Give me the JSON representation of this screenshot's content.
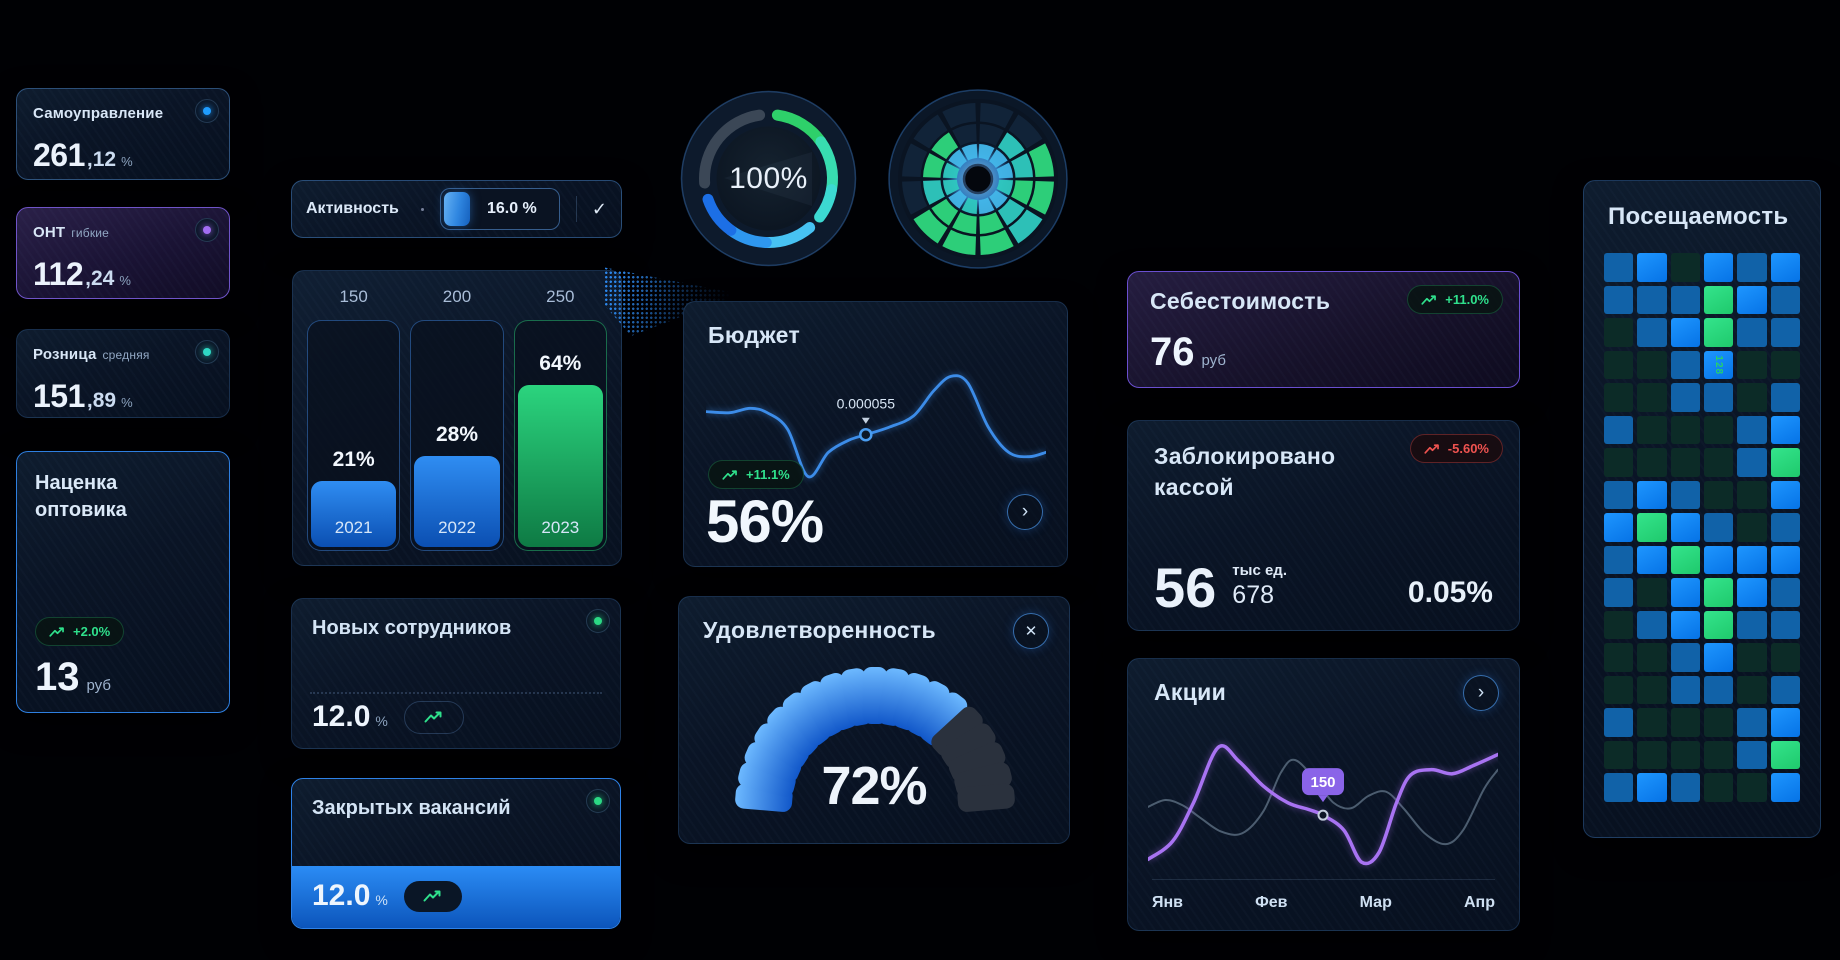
{
  "icons": {
    "check": "✓",
    "chevron": "›",
    "close": "✕"
  },
  "kpi": {
    "selfgov": {
      "title": "Самоуправление",
      "value": "261",
      "fraction": ",12",
      "unit": "%",
      "dot_color": "#1f9dff"
    },
    "ont": {
      "title": "ОНТ",
      "subtitle": "гибкие",
      "value": "112",
      "fraction": ",24",
      "unit": "%",
      "dot_color": "#a26df2"
    },
    "retail": {
      "title": "Розница",
      "subtitle": "средняя",
      "value": "151",
      "fraction": ",89",
      "unit": "%",
      "dot_color": "#2fd9c4"
    },
    "markup": {
      "title": "Наценка оптовика",
      "badge": "+2.0%",
      "value": "13",
      "unit": "руб"
    }
  },
  "activity": {
    "label": "Активность",
    "value": "16.0 %"
  },
  "employees": {
    "title": "Новых сотрудников",
    "value": "12.0",
    "unit": "%"
  },
  "vacancies": {
    "title": "Закрытых вакансий",
    "value": "12.0",
    "unit": "%"
  },
  "ring_gauge": {
    "label": "100%"
  },
  "budget": {
    "title": "Бюджет",
    "badge": "+11.1%",
    "value": "56%",
    "tooltip": "0.000055"
  },
  "satisfaction": {
    "title": "Удовлетворенность",
    "value": "72%"
  },
  "cost": {
    "title": "Себестоимость",
    "badge": "+11.0%",
    "value": "76",
    "unit": "руб"
  },
  "blocked": {
    "title": "Заблокировано кассой",
    "badge": "-5.60%",
    "value": "56",
    "unit_label": "тыс ед.",
    "sub_value": "678",
    "rate": "0.05%"
  },
  "stocks": {
    "title": "Акции",
    "tooltip": "150"
  },
  "attendance": {
    "title": "Посещаемость",
    "annotation": "128"
  },
  "chart_data": [
    {
      "id": "year-bars",
      "type": "bar",
      "categories": [
        "2021",
        "2022",
        "2023"
      ],
      "values": [
        21,
        28,
        64
      ],
      "column_caps": [
        "150",
        "200",
        "250"
      ],
      "fill_ratio": [
        0.3,
        0.41,
        0.72
      ],
      "bar_colors": [
        "blue",
        "blue",
        "green"
      ],
      "title": "",
      "xlabel": "",
      "ylabel": ""
    },
    {
      "id": "progress-ring",
      "type": "gauge",
      "value": 100,
      "label": "100%",
      "arc_segments": [
        {
          "from": 8,
          "to": 55,
          "color": "#2ed06a"
        },
        {
          "from": 55,
          "to": 100,
          "color": "#38dcb0"
        },
        {
          "from": 100,
          "to": 127,
          "color": "#3cd9d2"
        },
        {
          "from": 140,
          "to": 182,
          "color": "#47c2f2"
        },
        {
          "from": 182,
          "to": 216,
          "color": "#2e97ef"
        },
        {
          "from": 216,
          "to": 251,
          "color": "#1c6fe6"
        },
        {
          "from": 266,
          "to": 352,
          "color": "#3b4756"
        }
      ]
    },
    {
      "id": "polar-wheel",
      "type": "heatmap-polar",
      "palette": {
        "d": "#13263c",
        "t": "#2fc9c0",
        "c": "#43b7ea",
        "g": "#2fd87e"
      },
      "sectors": [
        [
          "c",
          "d",
          "d"
        ],
        [
          "c",
          "t",
          "d"
        ],
        [
          "c",
          "t",
          "g"
        ],
        [
          "t",
          "g",
          "g"
        ],
        [
          "c",
          "t",
          "t"
        ],
        [
          "c",
          "g",
          "g"
        ],
        [
          "t",
          "g",
          "g"
        ],
        [
          "c",
          "g",
          "g"
        ],
        [
          "t",
          "t",
          "d"
        ],
        [
          "t",
          "g",
          "d"
        ],
        [
          "c",
          "g",
          "d"
        ],
        [
          "c",
          "d",
          "d"
        ]
      ]
    },
    {
      "id": "budget-line",
      "type": "line",
      "color": "#3c8ce8",
      "points": [
        [
          0,
          0.36
        ],
        [
          0.07,
          0.37
        ],
        [
          0.13,
          0.33
        ],
        [
          0.18,
          0.37
        ],
        [
          0.24,
          0.52
        ],
        [
          0.3,
          0.95
        ],
        [
          0.36,
          0.73
        ],
        [
          0.42,
          0.62
        ],
        [
          0.47,
          0.57
        ],
        [
          0.54,
          0.5
        ],
        [
          0.61,
          0.4
        ],
        [
          0.67,
          0.17
        ],
        [
          0.72,
          0.04
        ],
        [
          0.77,
          0.1
        ],
        [
          0.83,
          0.5
        ],
        [
          0.89,
          0.73
        ],
        [
          0.95,
          0.77
        ],
        [
          1,
          0.73
        ]
      ],
      "marker": {
        "x": 0.47,
        "y": 0.57,
        "label": "0.000055"
      }
    },
    {
      "id": "satisfaction-gauge",
      "type": "gauge-segments",
      "value": 72,
      "segments": 19,
      "filled": 14
    },
    {
      "id": "stocks-lines",
      "type": "line",
      "x_labels": [
        "Янв",
        "Фев",
        "Мар",
        "Апр"
      ],
      "series": [
        {
          "name": "baseline",
          "color": "#5d6f82",
          "width": 2,
          "points": [
            [
              0,
              0.55
            ],
            [
              0.05,
              0.5
            ],
            [
              0.1,
              0.54
            ],
            [
              0.15,
              0.63
            ],
            [
              0.21,
              0.73
            ],
            [
              0.27,
              0.74
            ],
            [
              0.33,
              0.58
            ],
            [
              0.38,
              0.3
            ],
            [
              0.42,
              0.21
            ],
            [
              0.48,
              0.36
            ],
            [
              0.53,
              0.52
            ],
            [
              0.58,
              0.56
            ],
            [
              0.63,
              0.47
            ],
            [
              0.68,
              0.44
            ],
            [
              0.73,
              0.56
            ],
            [
              0.79,
              0.74
            ],
            [
              0.85,
              0.82
            ],
            [
              0.9,
              0.72
            ],
            [
              0.96,
              0.42
            ],
            [
              1,
              0.28
            ]
          ]
        },
        {
          "name": "accent",
          "color": "#a873f2",
          "width": 3.5,
          "points": [
            [
              0,
              0.93
            ],
            [
              0.07,
              0.8
            ],
            [
              0.13,
              0.52
            ],
            [
              0.2,
              0.12
            ],
            [
              0.26,
              0.22
            ],
            [
              0.33,
              0.4
            ],
            [
              0.4,
              0.52
            ],
            [
              0.46,
              0.57
            ],
            [
              0.5,
              0.61
            ],
            [
              0.56,
              0.72
            ],
            [
              0.61,
              0.95
            ],
            [
              0.66,
              0.88
            ],
            [
              0.71,
              0.52
            ],
            [
              0.75,
              0.32
            ],
            [
              0.81,
              0.28
            ],
            [
              0.87,
              0.31
            ],
            [
              0.93,
              0.25
            ],
            [
              1,
              0.17
            ]
          ]
        }
      ],
      "marker": {
        "series": 1,
        "x": 0.5,
        "y": 0.61,
        "label": "150"
      }
    },
    {
      "id": "attendance-heatmap",
      "type": "heatmap",
      "cols": 6,
      "palette": {
        "d": "#0c2b27",
        "b": "#1162a8",
        "B": "#0a86ff",
        "g": "#2bdc81"
      },
      "rows": [
        "bBdBbB",
        "bbbgBb",
        "dbBgbb",
        "ddbBdd",
        "ddbbdb",
        "bdddbB",
        "ddddbg",
        "bBbddB",
        "BgBbdb",
        "bBgBBB",
        "bdBgBb",
        "dbBgbb",
        "ddbBdd",
        "ddbbdb",
        "bdddbB",
        "ddddbg",
        "bBbddB"
      ],
      "annotation": {
        "row": 3,
        "col": 3,
        "label": "128"
      }
    }
  ]
}
